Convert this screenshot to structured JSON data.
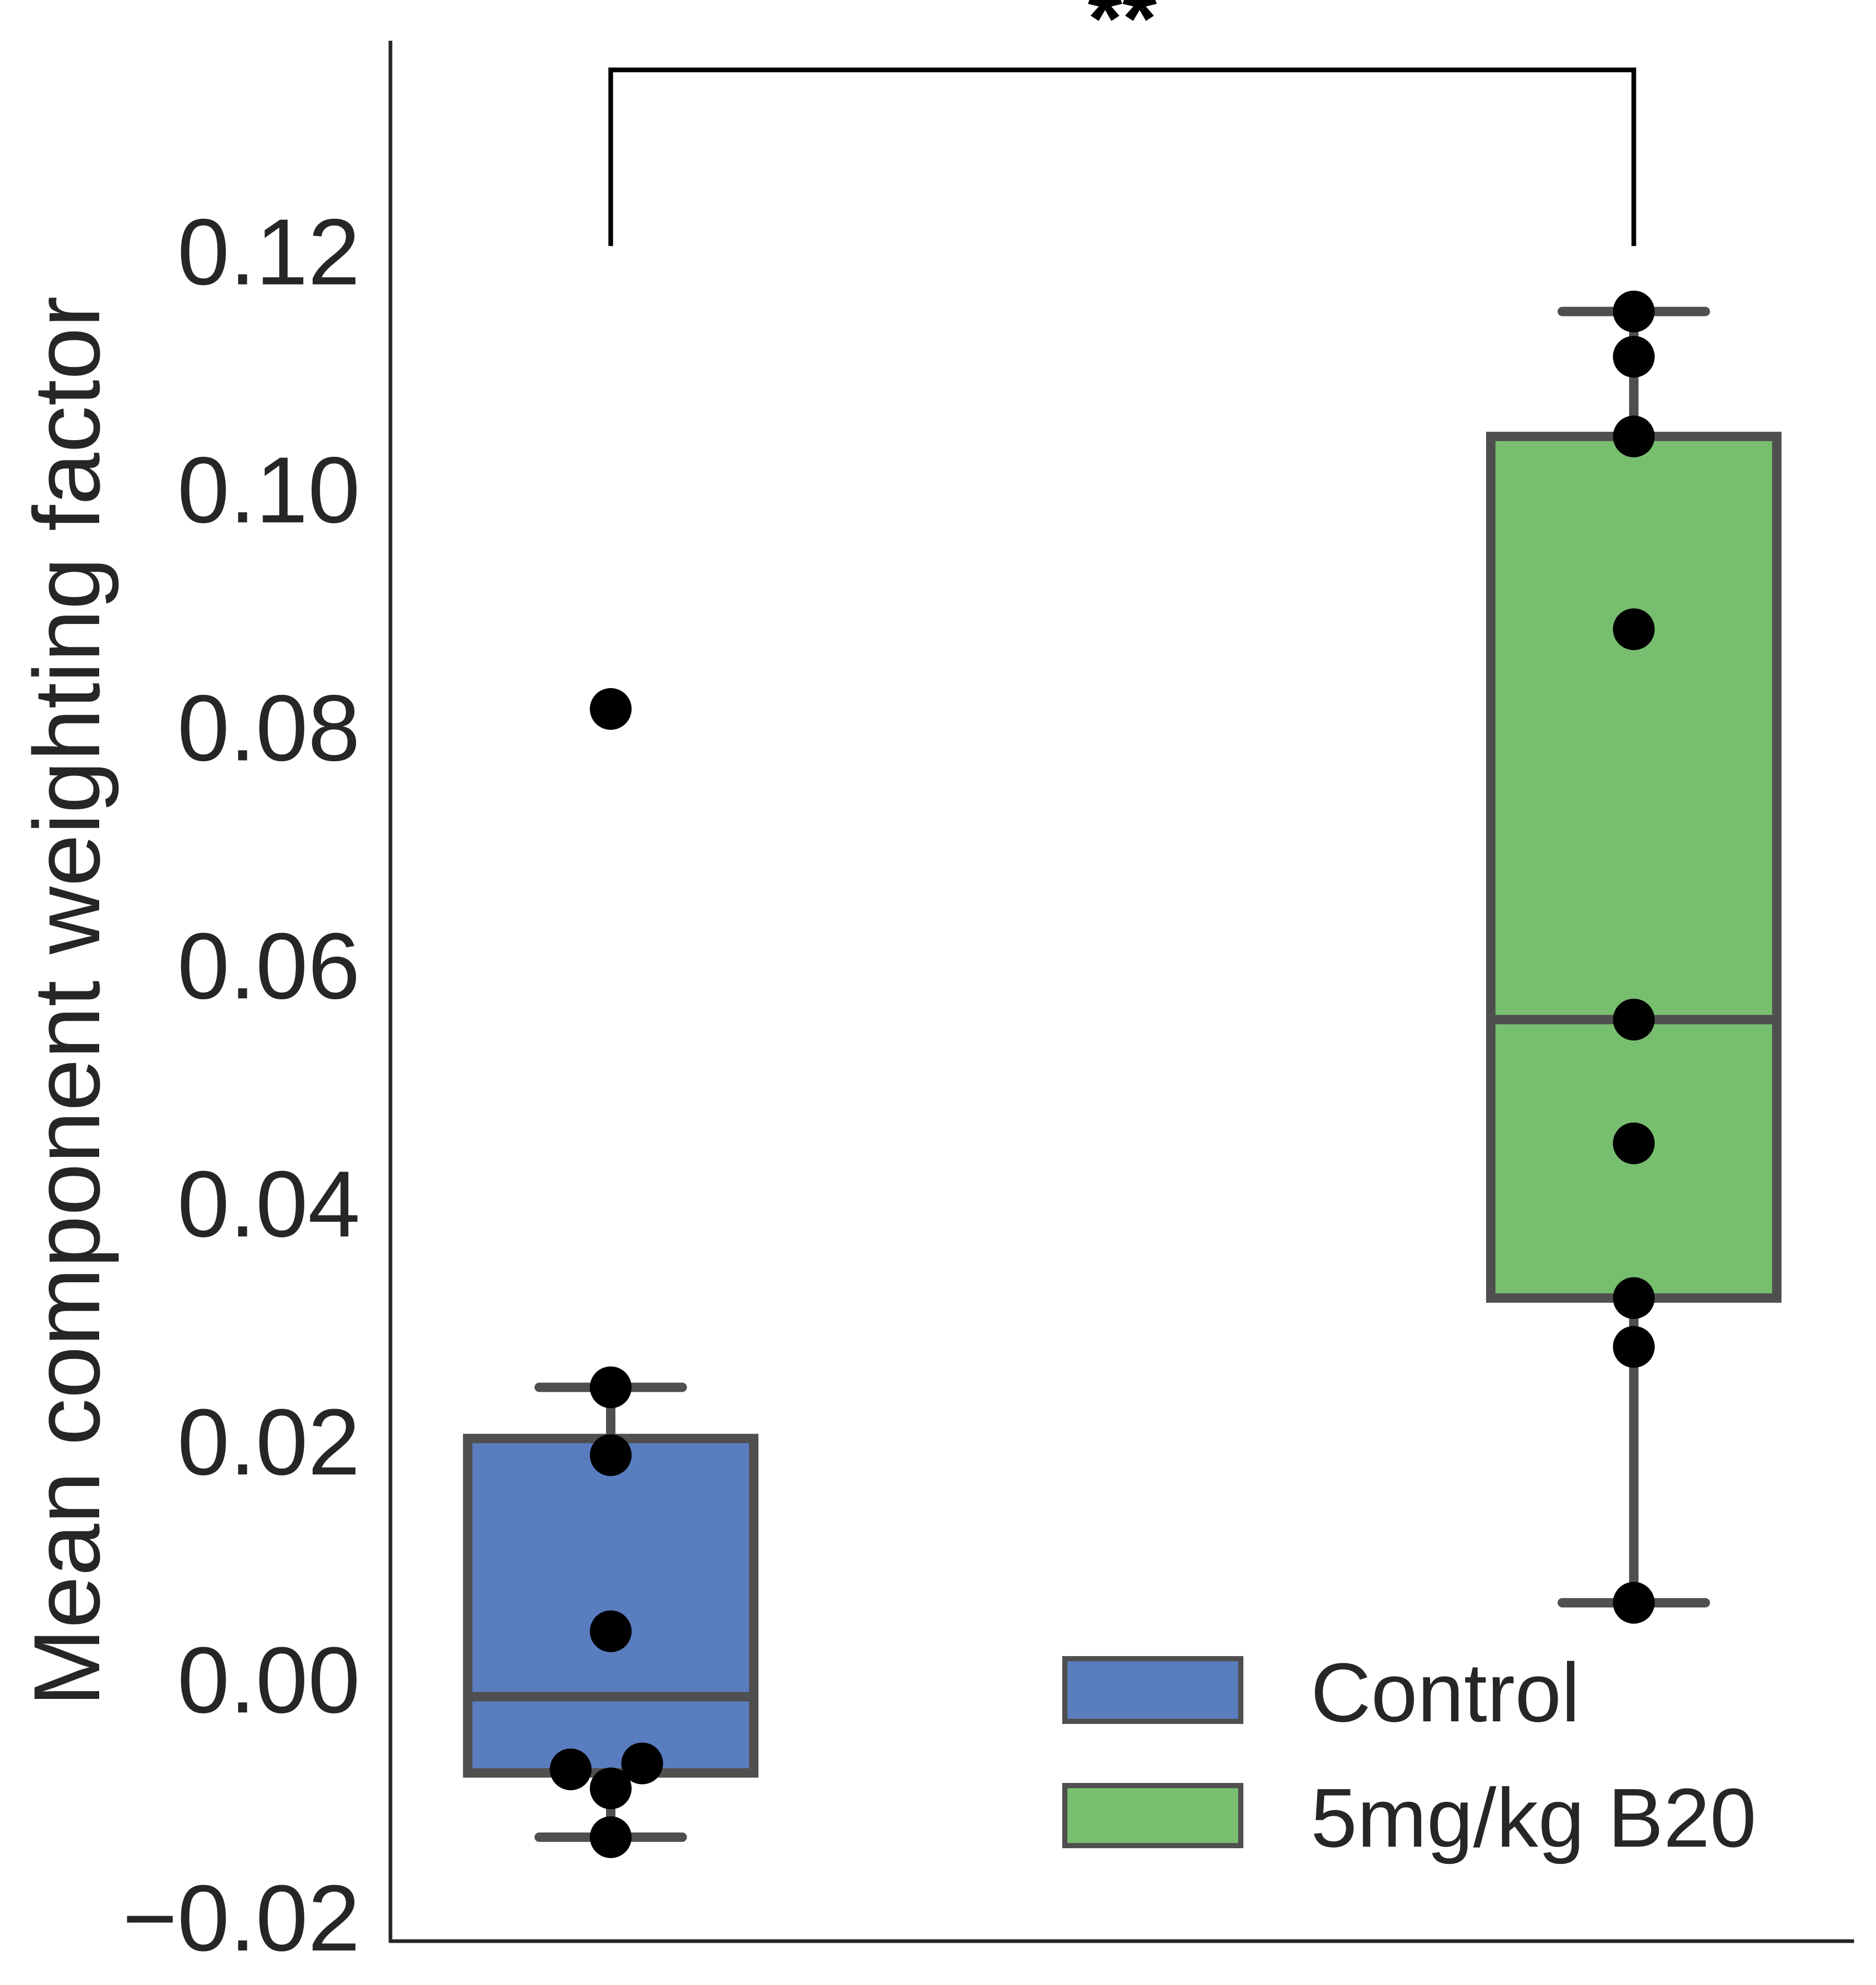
{
  "chart_data": {
    "type": "box",
    "title": "",
    "xlabel": "",
    "ylabel": "Mean component weighting factor",
    "ylim": [
      -0.02,
      0.136
    ],
    "yticks": [
      -0.02,
      0.0,
      0.02,
      0.04,
      0.06,
      0.08,
      0.1,
      0.12
    ],
    "ytick_labels": [
      "−0.02",
      "0.00",
      "0.02",
      "0.04",
      "0.06",
      "0.08",
      "0.10",
      "0.12"
    ],
    "grid": false,
    "legend_position": "bottom-right",
    "groups": [
      {
        "name": "Control",
        "color": "#5a7dbf",
        "q1": -0.0078,
        "median": -0.0014,
        "q3": 0.0203,
        "whisker_low": -0.0132,
        "whisker_high": 0.0246,
        "points": [
          0.0816,
          0.0246,
          0.0189,
          0.0041,
          -0.0075,
          -0.007,
          -0.0091,
          -0.0132
        ],
        "jitter": [
          0,
          0,
          0,
          0,
          -0.14,
          0.11,
          0,
          0
        ]
      },
      {
        "name": "5mg/kg B20",
        "color": "#78be6f",
        "q1": 0.0321,
        "median": 0.0555,
        "q3": 0.1045,
        "whisker_low": 0.0065,
        "whisker_high": 0.115,
        "points": [
          0.115,
          0.1112,
          0.1045,
          0.0883,
          0.0555,
          0.0451,
          0.0321,
          0.028,
          0.0065
        ],
        "jitter": [
          0,
          0,
          0,
          0,
          0,
          0,
          0,
          0,
          0
        ]
      }
    ],
    "annotation": {
      "label": "**",
      "bar_y": 0.1353,
      "leg_bottom": 0.1205
    }
  }
}
